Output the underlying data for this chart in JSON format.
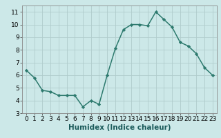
{
  "x": [
    0,
    1,
    2,
    3,
    4,
    5,
    6,
    7,
    8,
    9,
    10,
    11,
    12,
    13,
    14,
    15,
    16,
    17,
    18,
    19,
    20,
    21,
    22,
    23
  ],
  "y": [
    6.4,
    5.8,
    4.8,
    4.7,
    4.4,
    4.4,
    4.4,
    3.5,
    4.0,
    3.7,
    6.0,
    8.1,
    9.6,
    10.0,
    10.0,
    9.9,
    11.0,
    10.4,
    9.8,
    8.6,
    8.3,
    7.7,
    6.6,
    6.0
  ],
  "line_color": "#2d7a6e",
  "marker": "D",
  "marker_size": 2.2,
  "bg_color": "#cce8e8",
  "grid_color": "#b0cccc",
  "xlabel": "Humidex (Indice chaleur)",
  "ylim": [
    3,
    11.5
  ],
  "xlim": [
    -0.5,
    23.5
  ],
  "yticks": [
    3,
    4,
    5,
    6,
    7,
    8,
    9,
    10,
    11
  ],
  "xticks": [
    0,
    1,
    2,
    3,
    4,
    5,
    6,
    7,
    8,
    9,
    10,
    11,
    12,
    13,
    14,
    15,
    16,
    17,
    18,
    19,
    20,
    21,
    22,
    23
  ],
  "tick_fontsize": 6.5,
  "xlabel_fontsize": 7.5,
  "linewidth": 1.1
}
